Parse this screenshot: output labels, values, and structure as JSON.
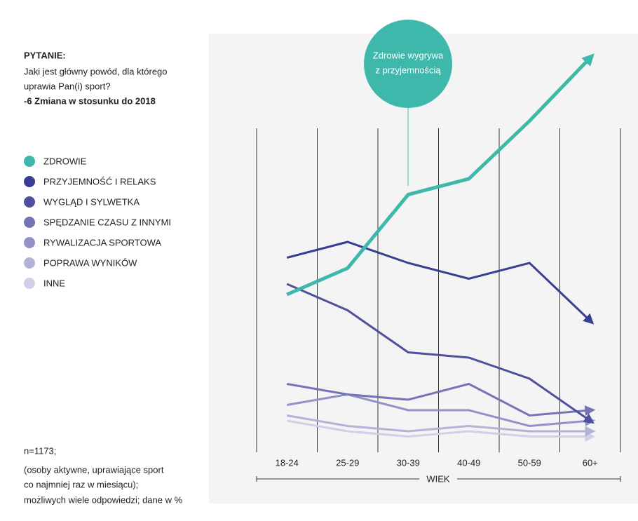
{
  "question": {
    "heading": "PYTANIE:",
    "lines": [
      "Jaki jest główny powód, dla którego",
      "uprawia Pan(i) sport?"
    ],
    "change_note": "-6  Zmiana w stosunku do 2018"
  },
  "footnote": [
    "n=1173;",
    "(osoby aktywne, uprawiające sport",
    "co najmniej raz w miesiącu);",
    "możliwych wiele odpowiedzi; dane w %"
  ],
  "chart_data": {
    "type": "line",
    "annotation": [
      "Zdrowie wygrywa",
      "z przyjemnością"
    ],
    "x_label": "WIEK",
    "categories": [
      "18-24",
      "25-29",
      "30-39",
      "40-49",
      "50-59",
      "60+"
    ],
    "ylim": [
      0,
      80
    ],
    "series": [
      {
        "name": "ZDROWIE",
        "color": "#3fb8ac",
        "values": [
          30,
          35,
          49,
          52,
          63,
          75
        ]
      },
      {
        "name": "PRZYJEMNOŚĆ I RELAKS",
        "color": "#383e93",
        "values": [
          37,
          40,
          36,
          33,
          36,
          25
        ]
      },
      {
        "name": "WYGLĄD I SYLWETKA",
        "color": "#4f509f",
        "values": [
          32,
          27,
          19,
          18,
          14,
          6
        ]
      },
      {
        "name": "SPĘDZANIE CZASU Z INNYMI",
        "color": "#7574b6",
        "values": [
          13,
          11,
          10,
          13,
          7,
          8
        ]
      },
      {
        "name": "RYWALIZACJA SPORTOWA",
        "color": "#9392c8",
        "values": [
          9,
          11,
          8,
          8,
          5,
          6
        ]
      },
      {
        "name": "POPRAWA WYNIKÓW",
        "color": "#b3b2d9",
        "values": [
          7,
          5,
          4,
          5,
          4,
          4
        ]
      },
      {
        "name": "INNE",
        "color": "#d0cfe7",
        "values": [
          6,
          4,
          3,
          4,
          3,
          3
        ]
      }
    ]
  }
}
